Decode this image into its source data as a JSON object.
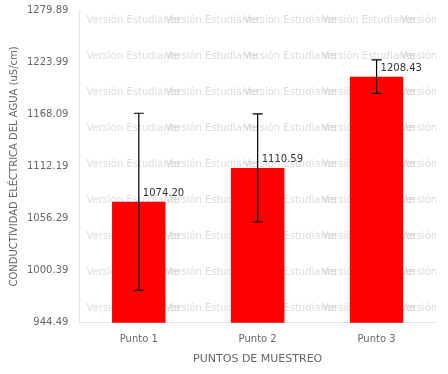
{
  "chart_data": {
    "type": "bar",
    "categories": [
      "Punto 1",
      "Punto 2",
      "Punto 3"
    ],
    "values": [
      1074.2,
      1110.59,
      1208.43
    ],
    "value_labels": [
      "1074.20",
      "1110.59",
      "1208.43"
    ],
    "errors": [
      95.0,
      58.0,
      18.0
    ],
    "color": "#FF0000",
    "xlabel": "PUNTOS DE MUESTREO",
    "ylabel": "CONDUCTIVIDAD ELÉCTRICA DEL AGUA (uS/cm)",
    "watermark": "Versión Estudiante",
    "ylim": [
      944.49,
      1279.89
    ],
    "yticks": [
      944.49,
      1000.39,
      1056.29,
      1112.19,
      1168.09,
      1223.99,
      1279.89
    ],
    "data_labels": true,
    "grid": false
  }
}
